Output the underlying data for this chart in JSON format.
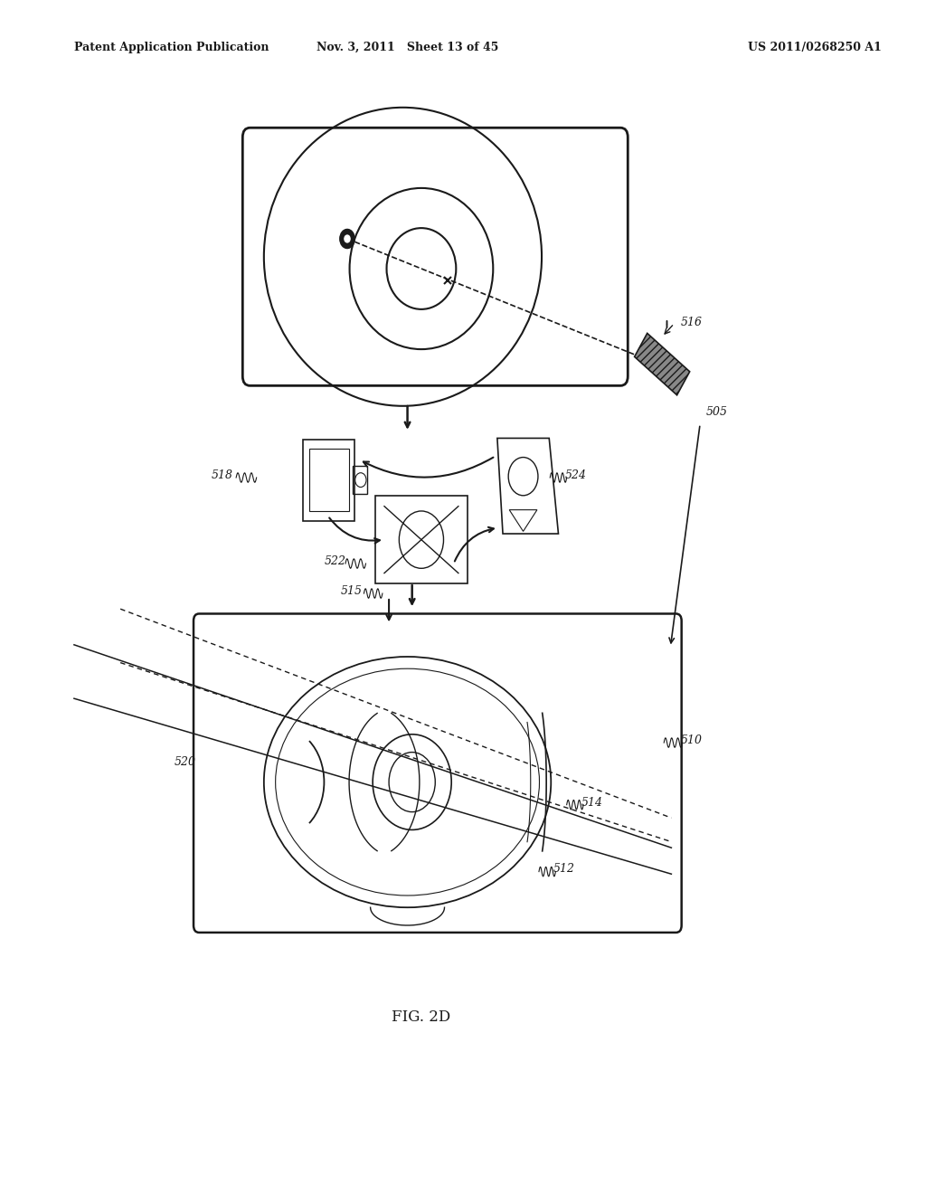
{
  "header_left": "Patent Application Publication",
  "header_mid": "Nov. 3, 2011   Sheet 13 of 45",
  "header_right": "US 2011/0268250 A1",
  "caption": "FIG. 2D",
  "bg_color": "#ffffff",
  "label_color": "#222222",
  "line_color": "#1a1a1a"
}
